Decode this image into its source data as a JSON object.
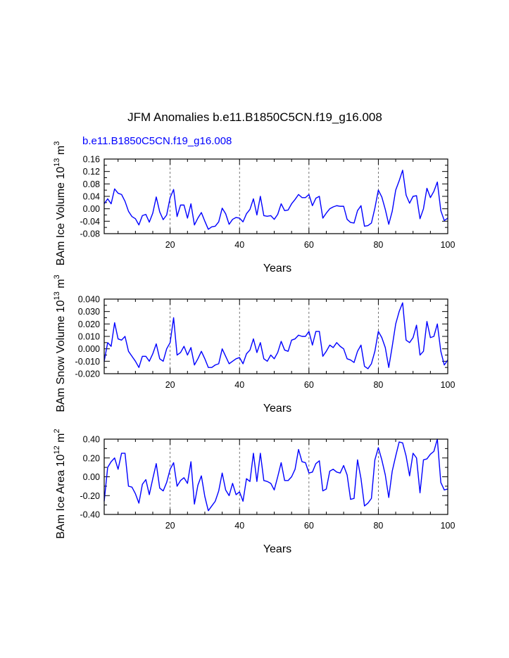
{
  "title": "JFM Anomalies b.e11.B1850C5CN.f19_g16.008",
  "legend_label": "b.e11.B1850C5CN.f19_g16.008",
  "colors": {
    "series": "#0000ff",
    "axis": "#000000",
    "grid": "#555555"
  },
  "chart_data": [
    {
      "type": "line",
      "ylabel": {
        "main": "BAm Ice Volume 10",
        "exp": "13",
        "unit": " m",
        "unit_exp": "3"
      },
      "xlabel": "Years",
      "xlim": [
        1,
        100
      ],
      "ylim": [
        -0.08,
        0.16
      ],
      "yticks": [
        -0.08,
        -0.04,
        0.0,
        0.04,
        0.08,
        0.12,
        0.16
      ],
      "yticklabels": [
        "-0.08",
        "-0.04",
        "0.00",
        "0.04",
        "0.08",
        "0.12",
        "0.16"
      ],
      "xticks": [
        20,
        40,
        60,
        80,
        100
      ],
      "xticklabels": [
        "20",
        "40",
        "60",
        "80",
        "100"
      ],
      "gridlines_x": [
        20,
        40,
        60,
        80
      ],
      "series": [
        {
          "name": "b.e11.B1850C5CN.f19_g16.008",
          "values": [
            0.016,
            0.032,
            0.016,
            0.064,
            0.05,
            0.046,
            0.024,
            -0.008,
            -0.025,
            -0.032,
            -0.052,
            -0.022,
            -0.018,
            -0.043,
            -0.014,
            0.038,
            -0.01,
            -0.035,
            -0.02,
            0.036,
            0.062,
            -0.025,
            0.012,
            0.012,
            -0.03,
            0.016,
            -0.052,
            -0.03,
            -0.012,
            -0.04,
            -0.066,
            -0.058,
            -0.056,
            -0.042,
            0.002,
            -0.016,
            -0.05,
            -0.034,
            -0.028,
            -0.03,
            -0.042,
            -0.016,
            -0.002,
            0.032,
            -0.02,
            0.04,
            -0.022,
            -0.024,
            -0.022,
            -0.034,
            -0.018,
            0.016,
            -0.006,
            -0.004,
            0.016,
            0.03,
            0.046,
            0.036,
            0.036,
            0.046,
            0.01,
            0.034,
            0.04,
            -0.03,
            -0.014,
            0.0,
            0.006,
            0.01,
            0.008,
            0.008,
            -0.034,
            -0.044,
            -0.046,
            -0.006,
            0.01,
            -0.056,
            -0.054,
            -0.046,
            0.002,
            0.06,
            0.038,
            -0.002,
            -0.05,
            -0.008,
            0.06,
            0.09,
            0.124,
            0.044,
            0.018,
            0.04,
            0.042,
            -0.032,
            0.0,
            0.066,
            0.036,
            0.056,
            0.086,
            -0.006,
            -0.038,
            -0.03
          ]
        }
      ]
    },
    {
      "type": "line",
      "ylabel": {
        "main": "BAm Snow Volume 10",
        "exp": "13",
        "unit": " m",
        "unit_exp": "3"
      },
      "xlabel": "Years",
      "xlim": [
        1,
        100
      ],
      "ylim": [
        -0.02,
        0.04
      ],
      "yticks": [
        -0.02,
        -0.01,
        0.0,
        0.01,
        0.02,
        0.03,
        0.04
      ],
      "yticklabels": [
        "-0.020",
        "-0.010",
        "0.000",
        "0.010",
        "0.020",
        "0.030",
        "0.040"
      ],
      "xticks": [
        20,
        40,
        60,
        80,
        100
      ],
      "xticklabels": [
        "20",
        "40",
        "60",
        "80",
        "100"
      ],
      "gridlines_x": [
        20,
        40,
        60,
        80
      ],
      "series": [
        {
          "name": "b.e11.B1850C5CN.f19_g16.008",
          "values": [
            -0.01,
            0.005,
            0.002,
            0.021,
            0.008,
            0.007,
            0.01,
            -0.002,
            -0.006,
            -0.01,
            -0.015,
            -0.006,
            -0.006,
            -0.01,
            -0.004,
            0.004,
            -0.008,
            -0.01,
            0.0,
            0.005,
            0.025,
            -0.005,
            -0.003,
            0.002,
            -0.005,
            0.001,
            -0.013,
            -0.008,
            -0.002,
            -0.008,
            -0.015,
            -0.015,
            -0.013,
            -0.012,
            0.0,
            -0.006,
            -0.012,
            -0.01,
            -0.008,
            -0.007,
            -0.012,
            -0.004,
            -0.001,
            0.008,
            -0.003,
            0.005,
            -0.008,
            -0.01,
            -0.005,
            -0.008,
            -0.003,
            0.006,
            -0.001,
            -0.002,
            0.007,
            0.008,
            0.011,
            0.01,
            0.01,
            0.014,
            0.003,
            0.014,
            0.014,
            -0.006,
            -0.002,
            0.003,
            0.001,
            0.005,
            0.002,
            0.0,
            -0.008,
            -0.009,
            -0.011,
            -0.002,
            0.003,
            -0.014,
            -0.016,
            -0.012,
            -0.002,
            0.014,
            0.009,
            0.001,
            -0.015,
            0.002,
            0.02,
            0.03,
            0.037,
            0.007,
            0.005,
            0.009,
            0.019,
            -0.005,
            -0.002,
            0.022,
            0.009,
            0.01,
            0.02,
            -0.002,
            -0.013,
            -0.009
          ]
        }
      ]
    },
    {
      "type": "line",
      "ylabel": {
        "main": "BAm Ice Area 10",
        "exp": "12",
        "unit": " m",
        "unit_exp": "2"
      },
      "xlabel": "Years",
      "xlim": [
        1,
        100
      ],
      "ylim": [
        -0.4,
        0.4
      ],
      "yticks": [
        -0.4,
        -0.2,
        0.0,
        0.2,
        0.4
      ],
      "yticklabels": [
        "-0.40",
        "-0.20",
        "0.00",
        "0.20",
        "0.40"
      ],
      "xticks": [
        20,
        40,
        60,
        80,
        100
      ],
      "xticklabels": [
        "20",
        "40",
        "60",
        "80",
        "100"
      ],
      "gridlines_x": [
        20,
        40,
        60,
        80
      ],
      "series": [
        {
          "name": "b.e11.B1850C5CN.f19_g16.008",
          "values": [
            -0.26,
            0.1,
            0.16,
            0.2,
            0.08,
            0.25,
            0.25,
            -0.1,
            -0.11,
            -0.18,
            -0.28,
            -0.08,
            -0.03,
            -0.19,
            -0.02,
            0.14,
            -0.12,
            -0.15,
            -0.06,
            0.08,
            0.15,
            -0.1,
            -0.04,
            -0.01,
            -0.07,
            0.16,
            -0.29,
            -0.09,
            0.01,
            -0.21,
            -0.36,
            -0.31,
            -0.26,
            -0.15,
            0.04,
            -0.14,
            -0.2,
            -0.07,
            -0.19,
            -0.16,
            -0.26,
            -0.02,
            -0.05,
            0.25,
            -0.05,
            0.25,
            -0.04,
            -0.05,
            -0.07,
            -0.14,
            0.0,
            0.15,
            -0.04,
            -0.04,
            0.0,
            0.08,
            0.29,
            0.16,
            0.15,
            0.04,
            0.05,
            0.14,
            0.17,
            -0.15,
            -0.13,
            0.06,
            0.08,
            0.05,
            0.04,
            0.12,
            0.02,
            -0.24,
            -0.23,
            0.18,
            -0.02,
            -0.31,
            -0.28,
            -0.23,
            0.18,
            0.31,
            0.18,
            0.02,
            -0.22,
            0.06,
            0.22,
            0.37,
            0.36,
            0.22,
            0.01,
            0.25,
            0.2,
            -0.17,
            0.18,
            0.19,
            0.24,
            0.27,
            0.4,
            -0.06,
            -0.14,
            -0.13
          ]
        }
      ]
    }
  ]
}
